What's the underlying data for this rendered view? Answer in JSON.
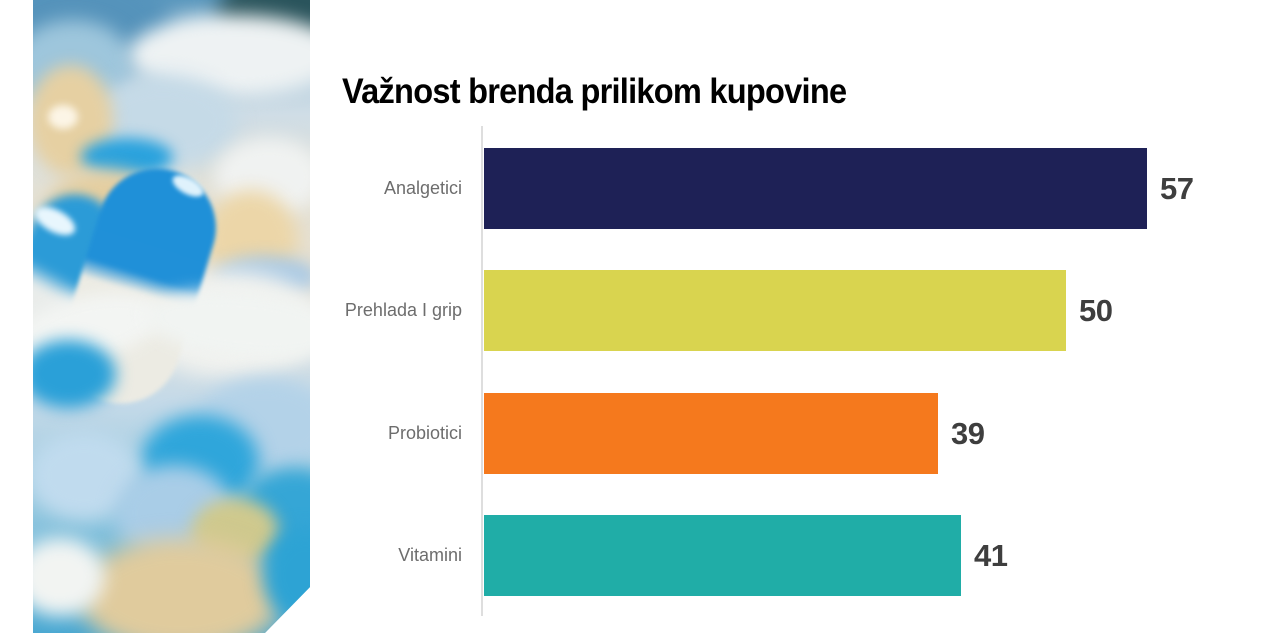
{
  "chart_data": {
    "type": "bar",
    "orientation": "horizontal",
    "title": "Važnost brenda prilikom kupovine",
    "categories": [
      "Analgetici",
      "Prehlada I grip",
      "Probiotici",
      "Vitamini"
    ],
    "values": [
      57,
      50,
      39,
      41
    ],
    "value_labels": [
      "57",
      "50",
      "39",
      "41"
    ],
    "bar_colors": [
      "#1e2156",
      "#d9d44f",
      "#f5791d",
      "#20ada7"
    ],
    "xlim": [
      0,
      57
    ],
    "grid": false,
    "legend": "none"
  },
  "photo": {
    "semantic": "blurred-photo-of-blue-white-capsules-and-pills"
  },
  "styles": {
    "background": "#ffffff",
    "title_color": "#000000",
    "category_label_color": "#6d6d6d",
    "value_label_color": "#3e3e3e",
    "axis_line_color": "#dedede"
  }
}
